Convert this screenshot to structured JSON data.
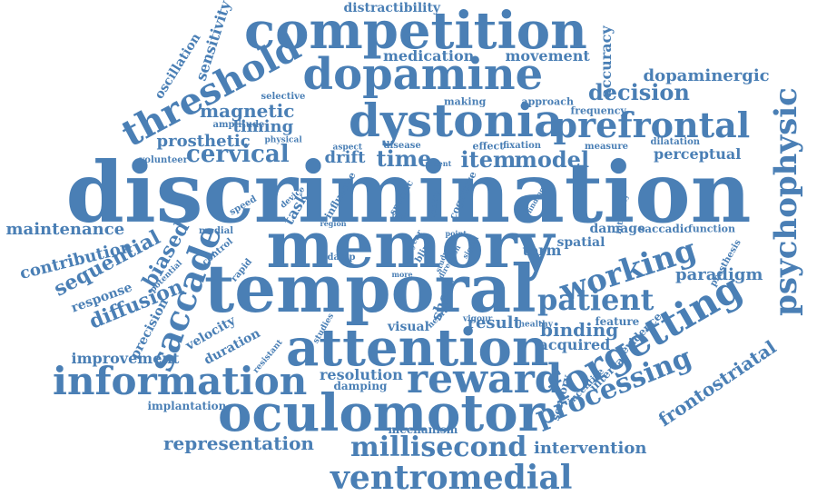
{
  "cloud": {
    "color": "#4a7fb5",
    "words": [
      "discrimination",
      "memory",
      "temporal",
      "attention",
      "oculomotor",
      "competition",
      "dopamine",
      "dystonia",
      "prefrontal",
      "psychophysic",
      "threshold",
      "information",
      "reward",
      "forgetting",
      "saccade",
      "working",
      "patient",
      "millisecond",
      "ventromedial",
      "processing",
      "item",
      "model",
      "cervical",
      "decision",
      "dopaminergic",
      "frontostriatal",
      "representation",
      "diffusion",
      "sequential",
      "biased",
      "time",
      "magnetic",
      "timing",
      "prosthetic",
      "drift",
      "medication",
      "movement",
      "accuracy",
      "sensitivity",
      "paradigm",
      "intervention",
      "maintenance",
      "contribution",
      "perceptual",
      "improvement",
      "resolution",
      "binding",
      "result",
      "acquired",
      "distractibility",
      "oscillation",
      "response",
      "precision",
      "velocity",
      "duration",
      "visual",
      "implantation",
      "mechanism",
      "damping",
      "selective",
      "amplitude",
      "volunteer",
      "making",
      "approach",
      "frequency",
      "dilatation",
      "measure",
      "disease",
      "effect",
      "fixation",
      "aspect",
      "physical",
      "recent",
      "speed",
      "device",
      "influence",
      "specific",
      "cognitive",
      "task",
      "medial",
      "control",
      "rapid",
      "damp",
      "more",
      "short",
      "term",
      "spatial",
      "damage",
      "saccadic",
      "function",
      "prosthesis",
      "feature",
      "evidence",
      "interval",
      "incentive",
      "sensory",
      "healthy",
      "vigour",
      "studies",
      "resistant",
      "neural",
      "potential",
      "region",
      "finding",
      "intensity",
      "year",
      "blind",
      "point",
      "signal",
      "study",
      "direction",
      "quality",
      "lost"
    ]
  }
}
